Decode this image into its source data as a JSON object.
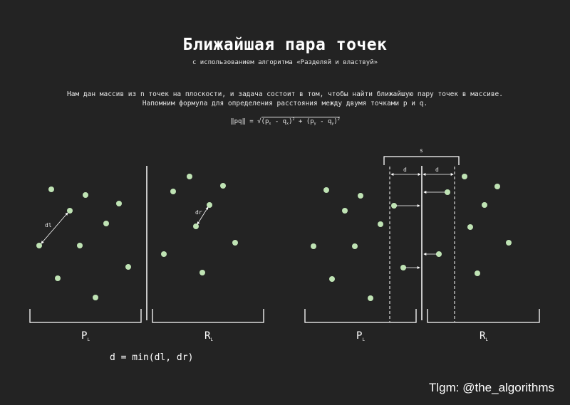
{
  "header": {
    "title": "Ближайшая пара точек",
    "subtitle": "с использованием алгоритма «Разделяй и властвуй»"
  },
  "description": {
    "line1": "Нам дан массив из n точек на плоскости, и задача состоит в том, чтобы найти ближайшую пару точек в массиве.",
    "line2": "Напомним формула для определения расстояния между двумя точками p и q."
  },
  "formula": {
    "lhs": "‖pq‖ = ",
    "root": "√",
    "p": "p",
    "q": "q",
    "x": "x",
    "y": "y",
    "sq": "2",
    "minus": " - ",
    "plus": " + "
  },
  "labels": {
    "pl": "P",
    "rl": "R",
    "sub": "L",
    "dl": "dl",
    "dr": "dr",
    "s": "s",
    "d": "d",
    "result": "d = min(dl, dr)"
  },
  "colors": {
    "background": "#232323",
    "point": "#bfe3b4",
    "line": "#ffffff"
  },
  "footer": {
    "credit": "Tlgm: @the_algorithms"
  }
}
